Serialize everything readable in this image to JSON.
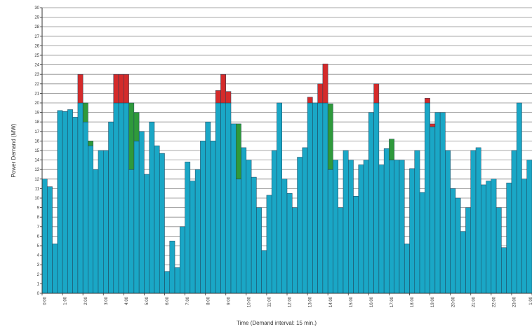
{
  "chart_data": {
    "type": "bar",
    "stacked": true,
    "xlabel": "Time (Demand interval: 15 min.)",
    "ylabel": "Power Demand (MW)",
    "ylim": [
      0,
      30
    ],
    "yticks": [
      0,
      1,
      2,
      3,
      4,
      5,
      6,
      7,
      8,
      9,
      10,
      11,
      12,
      13,
      14,
      15,
      16,
      17,
      18,
      19,
      20,
      21,
      22,
      23,
      24,
      25,
      26,
      27,
      28,
      29,
      30
    ],
    "xtick_labels": [
      "0:00",
      "1:00",
      "2:00",
      "3:00",
      "4:00",
      "5:00",
      "6:00",
      "7:00",
      "8:00",
      "9:00",
      "10:00",
      "11:00",
      "12:00",
      "13:00",
      "14:00",
      "15:00",
      "16:00",
      "17:00",
      "18:00",
      "19:00",
      "20:00",
      "21:00",
      "22:00",
      "23:00",
      "1:00"
    ],
    "intervals_per_hour": 4,
    "grid": true,
    "colors": {
      "base": "#1aa7c6",
      "red": "#d42b2b",
      "green": "#2f9a3b",
      "bar_edge": "#1f3f55",
      "grid": "#8a8a8a"
    },
    "series": [
      {
        "color_key": "base",
        "values": [
          12,
          11.2,
          5.2,
          19.2,
          19.1,
          19.3,
          18.5,
          20,
          18,
          15.5,
          13,
          15,
          15,
          18,
          20,
          20,
          20,
          13,
          16,
          17,
          12.5,
          18,
          15.5,
          14.7,
          2.3,
          5.5,
          2.7,
          7,
          13.8,
          11.8,
          13,
          16,
          18,
          16,
          20,
          20,
          20,
          17.8,
          12,
          15.3,
          14,
          12.2,
          9,
          4.5,
          10.3,
          15,
          20,
          12,
          10.5,
          9,
          14.3,
          15.3,
          20,
          20,
          20,
          20,
          13,
          14,
          9,
          15,
          14,
          10.2,
          13.5,
          14,
          19,
          20,
          13.5,
          15.2,
          14,
          14,
          14,
          5.2,
          13.1,
          15,
          10.6,
          20,
          17.5,
          19,
          19,
          15,
          11,
          10,
          6.5,
          9,
          15,
          15.3,
          11.4,
          11.8,
          12,
          9,
          4.8,
          11.6,
          15,
          20,
          12,
          14
        ]
      },
      {
        "color_key": "red",
        "values": [
          0,
          0,
          0,
          0,
          0,
          0,
          0,
          3,
          0,
          0,
          0,
          0,
          0,
          0,
          3,
          3,
          3,
          0,
          0,
          0,
          0,
          0,
          0,
          0,
          0,
          0,
          0,
          0,
          0,
          0,
          0,
          0,
          0,
          0,
          1.3,
          3,
          1.2,
          0,
          0,
          0,
          0,
          0,
          0,
          0,
          0,
          0,
          0,
          0,
          0,
          0,
          0,
          0,
          0.6,
          0,
          2,
          4.1,
          0,
          0,
          0,
          0,
          0,
          0,
          0,
          0,
          0,
          2,
          0,
          0,
          0,
          0,
          0,
          0,
          0,
          0,
          0,
          0.5,
          0.3,
          0,
          0,
          0,
          0,
          0,
          0,
          0,
          0,
          0,
          0,
          0,
          0,
          0,
          0,
          0,
          0,
          0,
          0,
          0
        ]
      },
      {
        "color_key": "green",
        "values": [
          0,
          0,
          0,
          0,
          0,
          0,
          0,
          0,
          2,
          0.5,
          0,
          0,
          0,
          0,
          0,
          0,
          0,
          7,
          3,
          0,
          0,
          0,
          0,
          0,
          0,
          0,
          0,
          0,
          0,
          0,
          0,
          0,
          0,
          0,
          0,
          0,
          0,
          0,
          5.8,
          0,
          0,
          0,
          0,
          0,
          0,
          0,
          0,
          0,
          0,
          0,
          0,
          0,
          0,
          0,
          0,
          0,
          6.9,
          0,
          0,
          0,
          0,
          0,
          0,
          0,
          0,
          0,
          0,
          0,
          2.2,
          0,
          0,
          0,
          0,
          0,
          0,
          0,
          0,
          0,
          0,
          0,
          0,
          0,
          0,
          0,
          0,
          0,
          0,
          0,
          0,
          0,
          0,
          0,
          0,
          0,
          0,
          0
        ]
      }
    ]
  }
}
